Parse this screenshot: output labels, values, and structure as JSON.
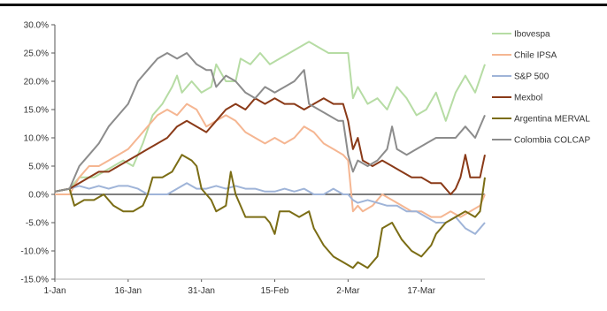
{
  "chart_data": {
    "type": "line",
    "title": "",
    "xlabel": "",
    "ylabel": "",
    "ylim": [
      -15,
      30
    ],
    "y_ticks": [
      "-15.0%",
      "-10.0%",
      "-5.0%",
      "0.0%",
      "5.0%",
      "10.0%",
      "15.0%",
      "20.0%",
      "25.0%",
      "30.0%"
    ],
    "x_ticks": [
      "1-Jan",
      "16-Jan",
      "31-Jan",
      "15-Feb",
      "2-Mar",
      "17-Mar"
    ],
    "x_range_days": [
      0,
      88
    ],
    "grid": false,
    "legend_position": "right",
    "series": [
      {
        "name": "Ibovespa",
        "color": "#b6dca4",
        "points": [
          [
            0,
            0.5
          ],
          [
            3,
            1
          ],
          [
            5,
            3
          ],
          [
            8,
            3
          ],
          [
            10,
            4
          ],
          [
            12,
            5
          ],
          [
            14,
            6
          ],
          [
            16,
            5
          ],
          [
            18,
            9
          ],
          [
            20,
            14
          ],
          [
            22,
            16
          ],
          [
            24,
            19
          ],
          [
            25,
            21
          ],
          [
            26,
            18
          ],
          [
            28,
            20
          ],
          [
            30,
            18
          ],
          [
            32,
            19
          ],
          [
            33,
            23
          ],
          [
            35,
            20
          ],
          [
            37,
            20
          ],
          [
            38,
            24
          ],
          [
            40,
            23
          ],
          [
            42,
            25
          ],
          [
            44,
            23
          ],
          [
            46,
            24
          ],
          [
            48,
            25
          ],
          [
            50,
            26
          ],
          [
            52,
            27
          ],
          [
            54,
            26
          ],
          [
            56,
            25
          ],
          [
            58,
            25
          ],
          [
            60,
            25
          ],
          [
            61,
            17
          ],
          [
            62,
            19
          ],
          [
            64,
            16
          ],
          [
            66,
            17
          ],
          [
            68,
            15
          ],
          [
            70,
            19
          ],
          [
            72,
            17
          ],
          [
            74,
            14
          ],
          [
            76,
            15
          ],
          [
            78,
            18
          ],
          [
            80,
            13
          ],
          [
            82,
            18
          ],
          [
            84,
            21
          ],
          [
            86,
            18
          ],
          [
            88,
            23
          ]
        ]
      },
      {
        "name": "Chile IPSA",
        "color": "#f5b692",
        "points": [
          [
            0,
            0
          ],
          [
            3,
            0
          ],
          [
            5,
            3
          ],
          [
            7,
            5
          ],
          [
            9,
            5
          ],
          [
            11,
            6
          ],
          [
            13,
            7
          ],
          [
            15,
            8
          ],
          [
            17,
            10
          ],
          [
            19,
            12
          ],
          [
            21,
            14
          ],
          [
            23,
            15
          ],
          [
            25,
            14
          ],
          [
            27,
            16
          ],
          [
            29,
            15
          ],
          [
            31,
            12
          ],
          [
            33,
            13
          ],
          [
            35,
            14
          ],
          [
            37,
            13
          ],
          [
            39,
            11
          ],
          [
            41,
            10
          ],
          [
            43,
            9
          ],
          [
            45,
            10
          ],
          [
            47,
            9
          ],
          [
            49,
            10
          ],
          [
            51,
            12
          ],
          [
            53,
            11
          ],
          [
            55,
            9
          ],
          [
            57,
            8
          ],
          [
            59,
            7
          ],
          [
            60,
            6
          ],
          [
            61,
            -3
          ],
          [
            62,
            -2
          ],
          [
            63,
            -3
          ],
          [
            65,
            -2
          ],
          [
            67,
            0
          ],
          [
            69,
            -1
          ],
          [
            71,
            -2
          ],
          [
            73,
            -3
          ],
          [
            75,
            -3
          ],
          [
            77,
            -4
          ],
          [
            79,
            -4
          ],
          [
            81,
            -3
          ],
          [
            83,
            -4
          ],
          [
            85,
            -3
          ],
          [
            87,
            -2
          ],
          [
            88,
            0
          ]
        ]
      },
      {
        "name": "S&P 500",
        "color": "#9fb4d8",
        "points": [
          [
            0,
            0.5
          ],
          [
            3,
            1
          ],
          [
            5,
            1.5
          ],
          [
            7,
            1
          ],
          [
            9,
            1.5
          ],
          [
            11,
            1
          ],
          [
            13,
            1.5
          ],
          [
            15,
            1.5
          ],
          [
            17,
            1
          ],
          [
            19,
            0
          ],
          [
            21,
            0
          ],
          [
            23,
            0
          ],
          [
            25,
            1
          ],
          [
            27,
            2
          ],
          [
            29,
            1
          ],
          [
            31,
            1
          ],
          [
            33,
            1.5
          ],
          [
            35,
            1
          ],
          [
            37,
            1.5
          ],
          [
            39,
            1
          ],
          [
            41,
            1
          ],
          [
            43,
            0.5
          ],
          [
            45,
            0.5
          ],
          [
            47,
            1
          ],
          [
            49,
            0.5
          ],
          [
            51,
            1
          ],
          [
            53,
            0
          ],
          [
            55,
            0
          ],
          [
            57,
            1
          ],
          [
            59,
            0
          ],
          [
            60,
            0
          ],
          [
            61,
            -1
          ],
          [
            62,
            -1.5
          ],
          [
            64,
            -1
          ],
          [
            66,
            -1.5
          ],
          [
            68,
            -2
          ],
          [
            70,
            -2
          ],
          [
            72,
            -3
          ],
          [
            74,
            -3
          ],
          [
            76,
            -4
          ],
          [
            78,
            -5
          ],
          [
            80,
            -5
          ],
          [
            82,
            -4
          ],
          [
            84,
            -6
          ],
          [
            86,
            -7
          ],
          [
            88,
            -5
          ]
        ]
      },
      {
        "name": "Mexbol",
        "color": "#8a3a18",
        "points": [
          [
            0,
            0.5
          ],
          [
            3,
            1
          ],
          [
            5,
            2
          ],
          [
            7,
            3
          ],
          [
            9,
            4
          ],
          [
            11,
            4
          ],
          [
            13,
            5
          ],
          [
            15,
            6
          ],
          [
            17,
            7
          ],
          [
            19,
            8
          ],
          [
            21,
            9
          ],
          [
            23,
            10
          ],
          [
            25,
            12
          ],
          [
            27,
            13
          ],
          [
            29,
            12
          ],
          [
            31,
            11
          ],
          [
            33,
            13
          ],
          [
            35,
            15
          ],
          [
            37,
            16
          ],
          [
            39,
            15
          ],
          [
            41,
            17
          ],
          [
            43,
            16
          ],
          [
            45,
            17
          ],
          [
            47,
            16
          ],
          [
            49,
            16
          ],
          [
            51,
            15
          ],
          [
            53,
            16
          ],
          [
            55,
            17
          ],
          [
            57,
            16
          ],
          [
            59,
            16
          ],
          [
            60,
            13
          ],
          [
            61,
            8
          ],
          [
            62,
            10
          ],
          [
            63,
            6
          ],
          [
            65,
            5
          ],
          [
            67,
            6
          ],
          [
            69,
            5
          ],
          [
            71,
            4
          ],
          [
            73,
            3
          ],
          [
            75,
            3
          ],
          [
            77,
            2
          ],
          [
            79,
            2
          ],
          [
            81,
            0
          ],
          [
            82,
            1
          ],
          [
            83,
            3
          ],
          [
            84,
            7
          ],
          [
            85,
            3
          ],
          [
            87,
            3
          ],
          [
            88,
            7
          ]
        ]
      },
      {
        "name": "Argentina MERVAL",
        "color": "#7b6d15",
        "points": [
          [
            0,
            0.5
          ],
          [
            3,
            1
          ],
          [
            4,
            -2
          ],
          [
            6,
            -1
          ],
          [
            8,
            -1
          ],
          [
            10,
            0
          ],
          [
            12,
            -2
          ],
          [
            14,
            -3
          ],
          [
            16,
            -3
          ],
          [
            18,
            -2
          ],
          [
            19,
            0
          ],
          [
            20,
            3
          ],
          [
            22,
            3
          ],
          [
            24,
            4
          ],
          [
            26,
            7
          ],
          [
            28,
            6
          ],
          [
            29,
            5
          ],
          [
            30,
            1
          ],
          [
            32,
            -1
          ],
          [
            33,
            -3
          ],
          [
            35,
            -2
          ],
          [
            36,
            4
          ],
          [
            37,
            0
          ],
          [
            39,
            -4
          ],
          [
            41,
            -4
          ],
          [
            43,
            -4
          ],
          [
            44,
            -5
          ],
          [
            45,
            -7
          ],
          [
            46,
            -3
          ],
          [
            48,
            -3
          ],
          [
            50,
            -4
          ],
          [
            52,
            -3
          ],
          [
            53,
            -6
          ],
          [
            55,
            -9
          ],
          [
            57,
            -11
          ],
          [
            59,
            -12
          ],
          [
            61,
            -13
          ],
          [
            62,
            -12
          ],
          [
            64,
            -13
          ],
          [
            66,
            -11
          ],
          [
            67,
            -6
          ],
          [
            69,
            -5
          ],
          [
            71,
            -8
          ],
          [
            73,
            -10
          ],
          [
            75,
            -11
          ],
          [
            77,
            -9
          ],
          [
            78,
            -7
          ],
          [
            80,
            -5
          ],
          [
            82,
            -4
          ],
          [
            84,
            -3
          ],
          [
            86,
            -4
          ],
          [
            87,
            -3
          ],
          [
            88,
            3
          ]
        ]
      },
      {
        "name": "Colombia COLCAP",
        "color": "#8c8c8c",
        "points": [
          [
            0,
            0.5
          ],
          [
            3,
            1
          ],
          [
            5,
            5
          ],
          [
            7,
            7
          ],
          [
            9,
            9
          ],
          [
            11,
            12
          ],
          [
            13,
            14
          ],
          [
            15,
            16
          ],
          [
            17,
            20
          ],
          [
            19,
            22
          ],
          [
            21,
            24
          ],
          [
            23,
            25
          ],
          [
            25,
            24
          ],
          [
            27,
            25
          ],
          [
            29,
            23
          ],
          [
            31,
            22
          ],
          [
            32,
            22
          ],
          [
            33,
            19
          ],
          [
            35,
            21
          ],
          [
            37,
            20
          ],
          [
            39,
            18
          ],
          [
            41,
            17
          ],
          [
            43,
            19
          ],
          [
            45,
            18
          ],
          [
            47,
            19
          ],
          [
            49,
            20
          ],
          [
            51,
            22
          ],
          [
            52,
            16
          ],
          [
            54,
            15
          ],
          [
            56,
            14
          ],
          [
            58,
            13
          ],
          [
            59,
            13
          ],
          [
            60,
            7
          ],
          [
            61,
            4
          ],
          [
            62,
            6
          ],
          [
            64,
            5
          ],
          [
            66,
            6
          ],
          [
            68,
            8
          ],
          [
            69,
            12
          ],
          [
            70,
            8
          ],
          [
            72,
            7
          ],
          [
            74,
            8
          ],
          [
            76,
            9
          ],
          [
            78,
            10
          ],
          [
            80,
            10
          ],
          [
            82,
            10
          ],
          [
            84,
            12
          ],
          [
            86,
            10
          ],
          [
            88,
            14
          ]
        ]
      }
    ]
  }
}
